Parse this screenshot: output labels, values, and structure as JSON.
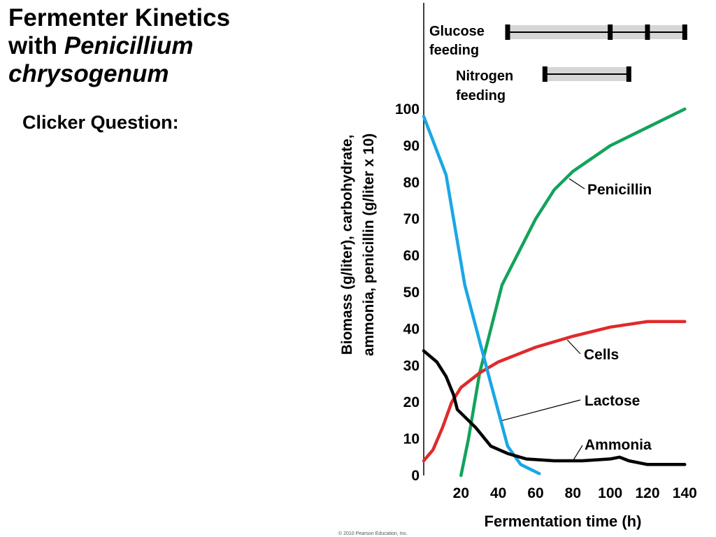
{
  "slide": {
    "title_line1": "Fermenter Kinetics",
    "title_with": "with ",
    "title_species_1": "Penicillium",
    "title_species_2": "chrysogenum",
    "subtitle": "Clicker Question:",
    "copyright": "© 2010 Pearson Education, Inc."
  },
  "chart_data": {
    "type": "line",
    "title": "",
    "xlabel": "Fermentation time (h)",
    "ylabel_line1": "Biomass (g/liter), carbohydrate,",
    "ylabel_line2": "ammonia, penicillin (g/liter x 10)",
    "xlim": [
      0,
      150
    ],
    "ylim": [
      0,
      100
    ],
    "x_ticks": [
      20,
      40,
      60,
      80,
      100,
      120,
      140
    ],
    "y_ticks": [
      0,
      10,
      20,
      30,
      40,
      50,
      60,
      70,
      80,
      90,
      100
    ],
    "grid": false,
    "series": [
      {
        "name": "Penicillin",
        "color": "#12a35a",
        "points": [
          [
            20,
            0
          ],
          [
            24,
            10
          ],
          [
            30,
            28
          ],
          [
            35,
            38
          ],
          [
            42,
            52
          ],
          [
            50,
            60
          ],
          [
            60,
            70
          ],
          [
            70,
            78
          ],
          [
            80,
            83
          ],
          [
            100,
            90
          ],
          [
            120,
            95
          ],
          [
            140,
            100
          ]
        ]
      },
      {
        "name": "Cells",
        "color": "#e02a2a",
        "points": [
          [
            0,
            4
          ],
          [
            5,
            7
          ],
          [
            10,
            13
          ],
          [
            15,
            20
          ],
          [
            20,
            24
          ],
          [
            30,
            28
          ],
          [
            40,
            31
          ],
          [
            60,
            35
          ],
          [
            80,
            38
          ],
          [
            100,
            40.5
          ],
          [
            120,
            42
          ],
          [
            130,
            42
          ],
          [
            140,
            42
          ]
        ]
      },
      {
        "name": "Lactose",
        "color": "#1aa7e4",
        "points": [
          [
            0,
            98
          ],
          [
            12,
            82
          ],
          [
            22,
            52
          ],
          [
            35,
            27
          ],
          [
            45,
            8
          ],
          [
            52,
            3
          ],
          [
            62,
            0.5
          ]
        ]
      },
      {
        "name": "Ammonia",
        "color": "#000000",
        "points": [
          [
            0,
            34
          ],
          [
            7,
            31
          ],
          [
            12,
            27
          ],
          [
            16,
            22
          ],
          [
            18,
            18
          ],
          [
            22,
            16
          ],
          [
            28,
            13
          ],
          [
            36,
            8
          ],
          [
            45,
            6
          ],
          [
            55,
            4.5
          ],
          [
            70,
            4
          ],
          [
            85,
            4
          ],
          [
            100,
            4.5
          ],
          [
            105,
            5
          ],
          [
            110,
            4
          ],
          [
            120,
            3
          ],
          [
            130,
            3
          ],
          [
            140,
            3
          ]
        ]
      }
    ],
    "series_labels": [
      {
        "series": "Penicillin",
        "text": "Penicillin",
        "anchor_x": 78,
        "anchor_y": 81
      },
      {
        "series": "Cells",
        "text": "Cells",
        "anchor_x": 77,
        "anchor_y": 37
      },
      {
        "series": "Lactose",
        "text": "Lactose",
        "anchor_x": 42,
        "anchor_y": 15
      },
      {
        "series": "Ammonia",
        "text": "Ammonia",
        "anchor_x": 80,
        "anchor_y": 4
      }
    ],
    "feeding_schedules": [
      {
        "label_line1": "Glucose",
        "label_line2": "feeding",
        "start": 45,
        "end": 140,
        "markers": [
          45,
          100,
          120,
          140
        ]
      },
      {
        "label_line1": "Nitrogen",
        "label_line2": "feeding",
        "start": 65,
        "end": 110,
        "markers": [
          65,
          110
        ]
      }
    ]
  }
}
